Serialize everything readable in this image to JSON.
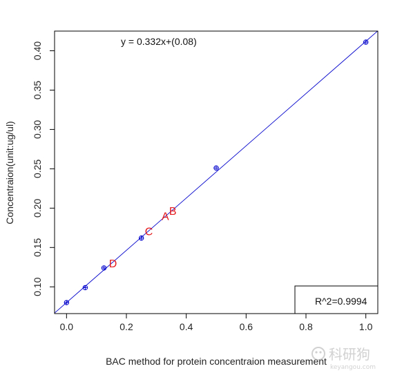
{
  "chart_data": {
    "type": "scatter",
    "xlabel": "BAC method for protein concentraion measurement",
    "ylabel": "Concentraion(unit:ug/ul)",
    "xlim": [
      -0.04,
      1.04
    ],
    "ylim": [
      0.066,
      0.425
    ],
    "xticks": [
      "0.0",
      "0.2",
      "0.4",
      "0.6",
      "0.8",
      "1.0"
    ],
    "yticks": [
      "0.10",
      "0.15",
      "0.20",
      "0.25",
      "0.30",
      "0.35",
      "0.40"
    ],
    "grid": false,
    "series": [
      {
        "points": [
          {
            "x": 0.0,
            "y": 0.08
          },
          {
            "x": 0.0625,
            "y": 0.099
          },
          {
            "x": 0.125,
            "y": 0.124
          },
          {
            "x": 0.25,
            "y": 0.162
          },
          {
            "x": 0.5,
            "y": 0.251
          },
          {
            "x": 1.0,
            "y": 0.411
          }
        ],
        "marker": "circle-plus",
        "color": "#0000cc"
      }
    ],
    "fit_line": {
      "slope": 0.332,
      "intercept": 0.08,
      "color": "#0000cc"
    },
    "labeled_points": [
      {
        "label": "A",
        "x": 0.33,
        "y": 0.19
      },
      {
        "label": "B",
        "x": 0.355,
        "y": 0.197
      },
      {
        "label": "C",
        "x": 0.275,
        "y": 0.171
      },
      {
        "label": "D",
        "x": 0.155,
        "y": 0.13
      }
    ],
    "label_color": "#e41a1c",
    "annotations": {
      "equation": "y = 0.332x+(0.08)",
      "r_squared": "R^2=0.9994"
    },
    "watermark": {
      "text": "科研狗",
      "sub": "keyangou.com"
    }
  }
}
